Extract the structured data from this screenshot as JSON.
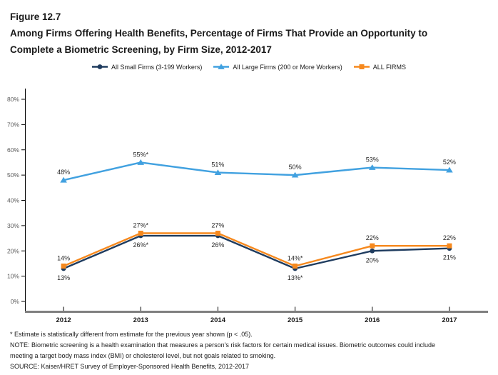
{
  "figure": {
    "number": "Figure 12.7",
    "title_line1": "Among Firms Offering Health Benefits, Percentage of Firms That Provide an Opportunity to",
    "title_line2": "Complete a Biometric Screening, by Firm Size, 2012-2017"
  },
  "legend": [
    {
      "label": "All Small Firms (3-199 Workers)",
      "color": "#1F3C5F",
      "marker": "circle"
    },
    {
      "label": "All Large Firms (200 or More Workers)",
      "color": "#41A1E0",
      "marker": "triangle"
    },
    {
      "label": "ALL FIRMS",
      "color": "#F6891E",
      "marker": "square"
    }
  ],
  "chart_data": {
    "type": "line",
    "title": "Among Firms Offering Health Benefits, Percentage of Firms That Provide an Opportunity to Complete a Biometric Screening, by Firm Size, 2012-2017",
    "x": [
      "2012",
      "2013",
      "2014",
      "2015",
      "2016",
      "2017"
    ],
    "series": [
      {
        "name": "All Small Firms (3-199 Workers)",
        "values": [
          13,
          26,
          26,
          13,
          20,
          21
        ],
        "labels": [
          "13%",
          "26%*",
          "26%",
          "13%*",
          "20%",
          "21%"
        ],
        "color": "#1F3C5F",
        "marker": "circle",
        "label_position": "below"
      },
      {
        "name": "All Large Firms (200 or More Workers)",
        "values": [
          48,
          55,
          51,
          50,
          53,
          52
        ],
        "labels": [
          "48%",
          "55%*",
          "51%",
          "50%",
          "53%",
          "52%"
        ],
        "color": "#41A1E0",
        "marker": "triangle",
        "label_position": "above"
      },
      {
        "name": "ALL FIRMS",
        "values": [
          14,
          27,
          27,
          14,
          22,
          22
        ],
        "labels": [
          "14%",
          "27%*",
          "27%",
          "14%*",
          "22%",
          "22%"
        ],
        "color": "#F6891E",
        "marker": "square",
        "label_position": "above"
      }
    ],
    "ylim": [
      0,
      80
    ],
    "yticks": [
      "0%",
      "10%",
      "20%",
      "30%",
      "40%",
      "50%",
      "60%",
      "70%",
      "80%"
    ],
    "xlabel": "",
    "ylabel": "",
    "grid": false,
    "legend_position": "top"
  },
  "colors": {
    "axis": "#000000",
    "baseline": "#7F7F7F",
    "ytick_label": "#595959",
    "xtick_label": "#1a1a1a",
    "data_label": "#262626"
  },
  "footnotes": {
    "line1": "* Estimate is statistically different from estimate for the previous year shown (p < .05).",
    "line2": "NOTE: Biometric screening is a health examination that measures a person's risk factors for certain medical issues. Biometric outcomes could include",
    "line3": "meeting a target body mass index (BMI) or cholesterol level, but not goals related to smoking.",
    "line4": "SOURCE: Kaiser/HRET Survey of Employer-Sponsored Health Benefits, 2012-2017"
  }
}
